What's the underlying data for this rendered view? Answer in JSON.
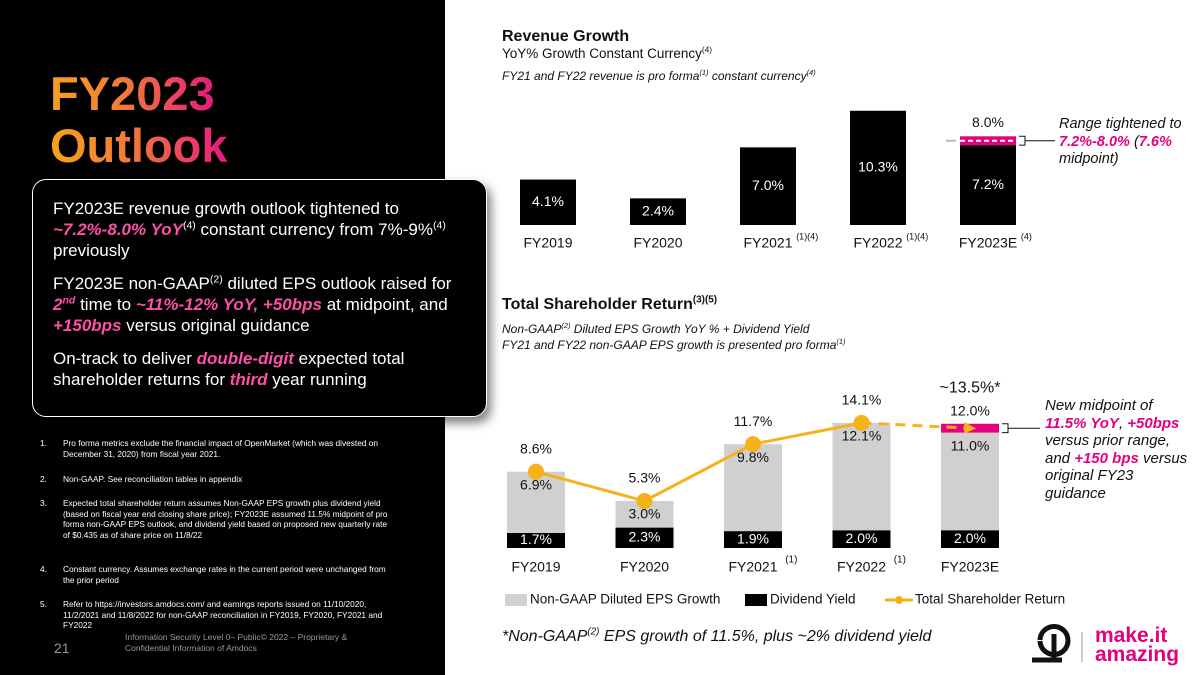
{
  "left": {
    "title_line1": "FY2023",
    "title_line2": "Outlook",
    "highlights": [
      [
        "FY2023E revenue growth outlook tightened to ",
        "~7.2%-8.0% YoY",
        "(4)",
        " constant currency from 7%-9%",
        "(4)",
        " previously"
      ],
      [
        "FY2023E non-GAAP",
        "(2)",
        " diluted EPS outlook raised for ",
        "2",
        "nd",
        " time to ",
        "~11%-12% YoY, +50bps",
        " at midpoint, and ",
        "+150bps",
        " versus original guidance"
      ],
      [
        "On-track to deliver ",
        "double-digit",
        " expected total shareholder returns for ",
        "third",
        " year running"
      ]
    ],
    "footnotes": [
      {
        "number": "1.",
        "text": "Pro forma metrics exclude the financial impact of OpenMarket (which was divested on December 31, 2020) from fiscal year 2021."
      },
      {
        "number": "2.",
        "text": "Non-GAAP. See reconciliation tables in appendix"
      },
      {
        "number": "3.",
        "text": "Expected total shareholder return assumes Non-GAAP EPS growth plus dividend yield (based on fiscal year end closing share price); FY2023E assumed 11.5% midpoint of pro forma non-GAAP EPS outlook, and dividend yield based on proposed new quarterly rate of $0.435 as of share price on 11/8/22"
      },
      {
        "number": "4.",
        "text": "Constant currency. Assumes exchange rates in the current period were unchanged from the prior period"
      },
      {
        "number": "5.",
        "text": "Refer to https://investors.amdocs.com/ and earnings reports issued on 11/10/2020, 11/2/2021 and 11/8/2022 for non-GAAP reconciliation in FY2019, FY2020, FY2021 and FY2022"
      }
    ],
    "page_number": "21",
    "classification": "Information Security Level 0– Public© 2022 – Proprietary & Confidential Information of Amdocs"
  },
  "chart_data": [
    {
      "type": "bar",
      "title": "Revenue Growth",
      "subtitle": [
        "YoY% Growth Constant Currency",
        "(4)"
      ],
      "note": [
        "FY21 and FY22 revenue is pro forma",
        "(1)",
        " constant currency",
        "(4)"
      ],
      "categories": [
        "FY2019",
        "FY2020",
        "FY2021",
        "FY2022",
        "FY2023E"
      ],
      "category_notes": [
        null,
        null,
        "(1)(4)",
        "(1)(4)",
        "(4)"
      ],
      "values": [
        4.1,
        2.4,
        7.0,
        10.3,
        7.2
      ],
      "value_labels": [
        "4.1%",
        "2.4%",
        "7.0%",
        "10.3%",
        "7.2%"
      ],
      "color": "#000000",
      "range_values": [
        null,
        null,
        null,
        null,
        8.0
      ],
      "range_labels": [
        null,
        null,
        null,
        null,
        "8.0%"
      ],
      "range_color": "#e5007d",
      "midpoints": [
        null,
        null,
        null,
        null,
        7.6
      ],
      "ylim": [
        0,
        11
      ],
      "annotation": [
        "Range tightened to ",
        "7.2%-8.0%",
        " (",
        "7.6%",
        " midpoint)"
      ]
    },
    {
      "type": "bar_line",
      "title": [
        "Total Shareholder Return",
        "(3)(5)"
      ],
      "subtitle": [
        "Non-GAAP",
        "(2)",
        " Diluted EPS Growth YoY % + Dividend Yield"
      ],
      "note": [
        "FY21 and FY22 non-GAAP EPS growth is presented pro forma",
        "(1)"
      ],
      "categories": [
        "FY2019",
        "FY2020",
        "FY2021",
        "FY2022",
        "FY2023E"
      ],
      "category_notes": [
        null,
        null,
        "(1)",
        "(1)",
        null
      ],
      "series": [
        {
          "name": "Non-GAAP Diluted EPS Growth",
          "color": "#d0d0d0",
          "values": [
            6.9,
            3.0,
            9.8,
            12.1,
            11.0
          ],
          "value_labels": [
            "6.9%",
            "3.0%",
            "9.8%",
            "12.1%",
            "11.0%"
          ]
        },
        {
          "name": "Dividend Yield",
          "color": "#000000",
          "values": [
            1.7,
            2.3,
            1.9,
            2.0,
            2.0
          ],
          "value_labels": [
            "1.7%",
            "2.3%",
            "1.9%",
            "2.0%",
            "2.0%"
          ]
        },
        {
          "name": "Total Shareholder Return",
          "type": "line",
          "color": "#f5b21b",
          "values": [
            8.6,
            5.3,
            11.7,
            14.1,
            13.5
          ],
          "value_labels": [
            "8.6%",
            "5.3%",
            "11.7%",
            "14.1%",
            "~13.5%*"
          ],
          "dashed": [
            false,
            false,
            false,
            false,
            true
          ]
        }
      ],
      "range_values": [
        null,
        null,
        null,
        null,
        12.0
      ],
      "range_labels": [
        null,
        null,
        null,
        null,
        "12.0%"
      ],
      "range_color": "#e5007d",
      "ylim": [
        0,
        16
      ],
      "annotation": [
        "New midpoint of ",
        "11.5% YoY",
        ", ",
        "+50bps",
        " versus prior range, and ",
        "+150 bps",
        " versus original FY23 guidance"
      ],
      "footnote": [
        "*Non-GAAP",
        "(2)",
        " EPS growth of 11.5%, plus ~2% dividend yield"
      ]
    }
  ],
  "logo": {
    "line1": "make.it",
    "line2": "amazing"
  }
}
